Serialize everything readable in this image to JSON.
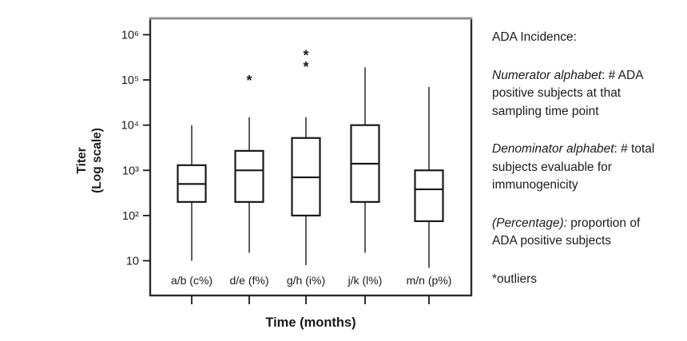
{
  "chart_data": {
    "type": "boxplot",
    "title": "",
    "xlabel": "Time (months)",
    "ylabel": "Titer (Log scale)",
    "ylabel_lines": [
      "Titer",
      "(Log scale)"
    ],
    "y_scale": "log10",
    "ylim": [
      2,
      2000000
    ],
    "grid": false,
    "y_ticks": [
      {
        "label": "10⁶",
        "value": 1000000
      },
      {
        "label": "10⁵",
        "value": 100000
      },
      {
        "label": "10⁴",
        "value": 10000
      },
      {
        "label": "10³",
        "value": 1000
      },
      {
        "label": "10²",
        "value": 100
      },
      {
        "label": "10",
        "value": 10
      }
    ],
    "categories": [
      "a/b (c%)",
      "d/e (f%)",
      "g/h (i%)",
      "j/k (l%)",
      "m/n (p%)"
    ],
    "series": [
      {
        "name": "a/b (c%)",
        "low": 10,
        "q1": 200,
        "median": 500,
        "q3": 1300,
        "high": 10000,
        "outliers": []
      },
      {
        "name": "d/e (f%)",
        "low": 15,
        "q1": 200,
        "median": 1000,
        "q3": 2700,
        "high": 15000,
        "outliers": [
          100000
        ]
      },
      {
        "name": "g/h (i%)",
        "low": 8,
        "q1": 100,
        "median": 700,
        "q3": 5200,
        "high": 15000,
        "outliers": [
          200000,
          360000
        ]
      },
      {
        "name": "j/k (l%)",
        "low": 15,
        "q1": 200,
        "median": 1400,
        "q3": 10000,
        "high": 190000,
        "outliers": []
      },
      {
        "name": "m/n (p%)",
        "low": 7,
        "q1": 75,
        "median": 380,
        "q3": 1000,
        "high": 70000,
        "outliers": []
      }
    ],
    "colors": {
      "line": "#1a1a1a",
      "frame": "#2d2d2d",
      "frame_top": "#8f8f8f",
      "background": "#ffffff"
    }
  },
  "legend": {
    "title": "ADA Incidence:",
    "paragraphs": [
      {
        "italic": "Numerator alphabet",
        "rest": ": # ADA positive  subjects at that sampling time point"
      },
      {
        "italic": "Denominator alphabet",
        "rest": ": # total subjects evaluable for immunogenicity"
      },
      {
        "italic": "(Percentage):",
        "rest": " proportion of ADA positive subjects"
      }
    ],
    "outliers_note": "*outliers"
  }
}
